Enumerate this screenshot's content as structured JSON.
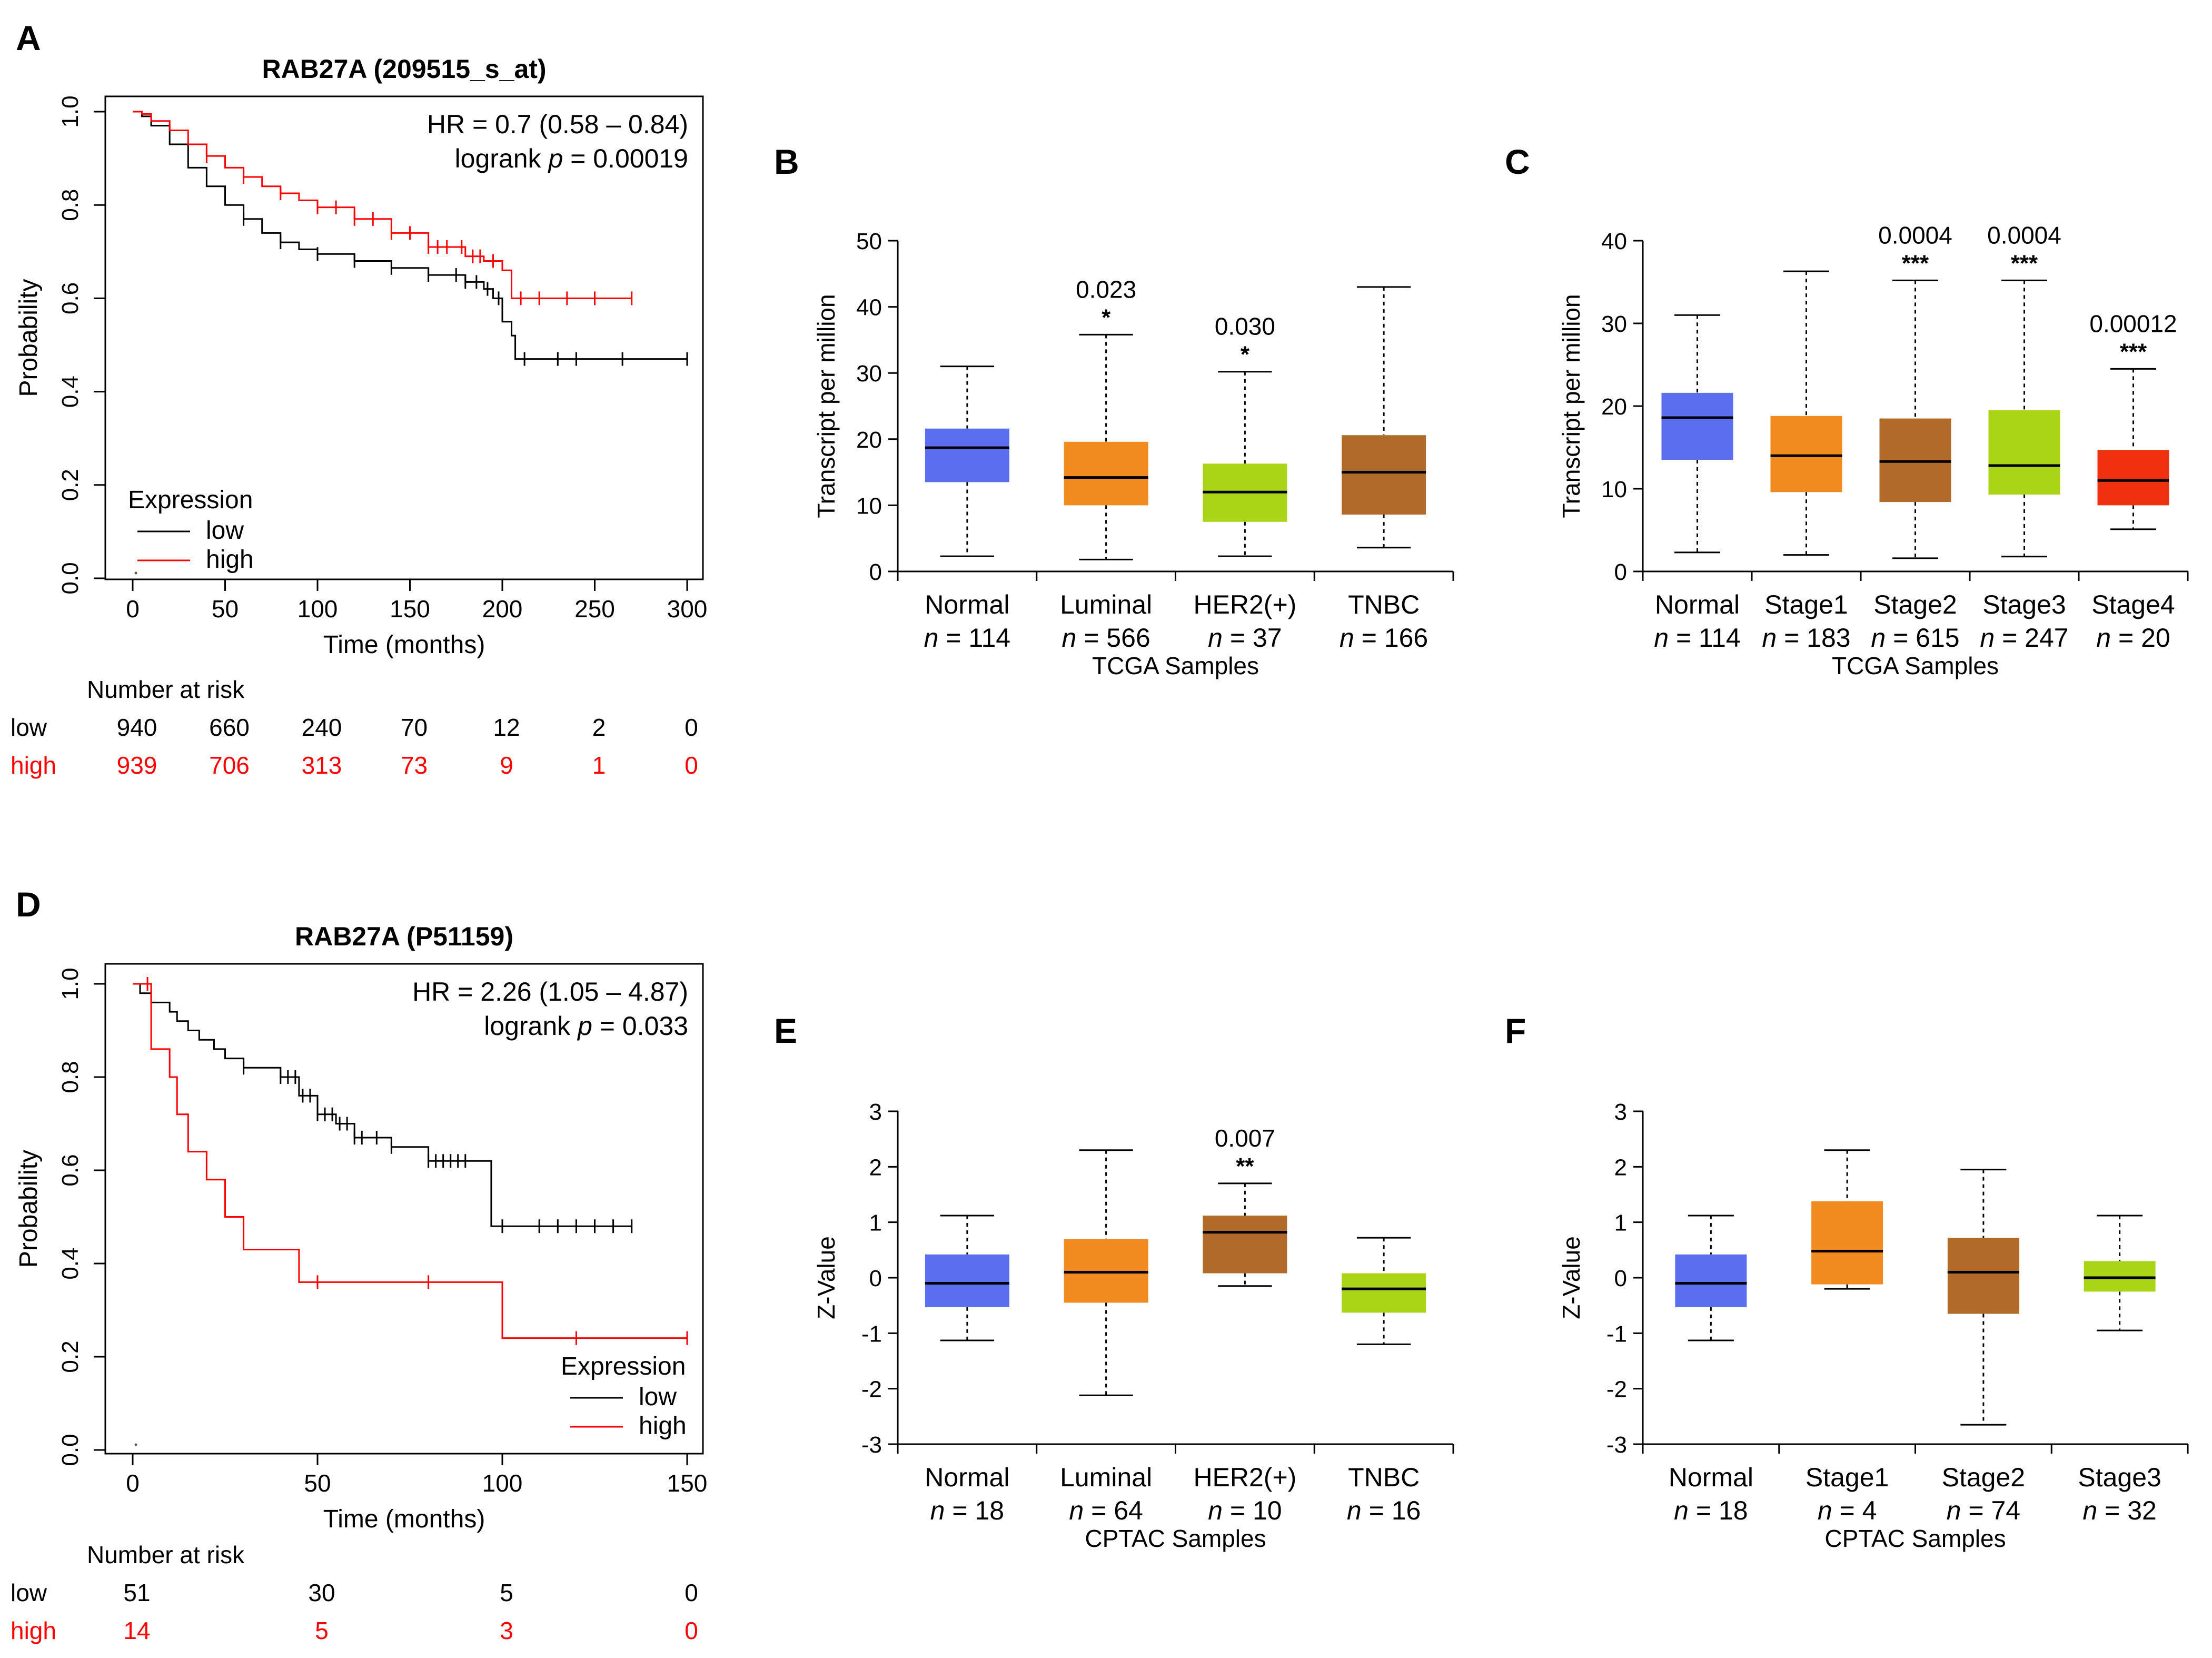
{
  "colors": {
    "km_low": "#000000",
    "km_high": "#ff0000",
    "risk_high": "#ff0000",
    "blue": "#5b6ef0",
    "orange": "#f28b1f",
    "lime": "#aad516",
    "brown": "#b06a2a",
    "red": "#f0300e"
  },
  "chart_data": [
    {
      "panel": "A",
      "type": "line",
      "subtype": "kaplan-meier",
      "title": "RAB27A (209515_s_at)",
      "xlabel": "Time (months)",
      "ylabel": "Probability",
      "xlim": [
        0,
        300
      ],
      "ylim": [
        0,
        1
      ],
      "xticks": [
        "0",
        "50",
        "100",
        "150",
        "200",
        "250",
        "300"
      ],
      "yticks": [
        "0.0",
        "0.2",
        "0.4",
        "0.6",
        "0.8",
        "1.0"
      ],
      "stats": {
        "hr": "HR = 0.7 (0.58 – 0.84)",
        "logrank_prefix": "logrank ",
        "p_symbol": "p",
        "p_value": " = 0.00019"
      },
      "legend": {
        "title": "Expression",
        "position": "bottom-left",
        "entries": [
          "low",
          "high"
        ]
      },
      "series": [
        {
          "name": "low",
          "color": "#000000",
          "x": [
            0,
            5,
            10,
            20,
            30,
            40,
            50,
            60,
            70,
            80,
            90,
            100,
            120,
            140,
            160,
            180,
            190,
            195,
            200,
            205,
            207,
            300
          ],
          "y": [
            1.0,
            0.99,
            0.97,
            0.93,
            0.88,
            0.84,
            0.8,
            0.77,
            0.74,
            0.72,
            0.705,
            0.695,
            0.68,
            0.665,
            0.65,
            0.635,
            0.62,
            0.6,
            0.55,
            0.52,
            0.47,
            0.47
          ],
          "censor_x": [
            60,
            80,
            100,
            120,
            140,
            160,
            175,
            180,
            186,
            192,
            198,
            212,
            230,
            240,
            265,
            300
          ]
        },
        {
          "name": "high",
          "color": "#ff0000",
          "x": [
            0,
            5,
            10,
            20,
            30,
            40,
            50,
            60,
            70,
            80,
            90,
            100,
            120,
            140,
            160,
            180,
            190,
            200,
            205,
            270
          ],
          "y": [
            1.0,
            0.995,
            0.98,
            0.96,
            0.93,
            0.905,
            0.88,
            0.86,
            0.84,
            0.825,
            0.81,
            0.795,
            0.77,
            0.74,
            0.71,
            0.69,
            0.68,
            0.66,
            0.6,
            0.6
          ],
          "censor_x": [
            40,
            60,
            80,
            100,
            110,
            120,
            130,
            140,
            150,
            160,
            165,
            170,
            178,
            184,
            188,
            195,
            210,
            220,
            235,
            250,
            270
          ]
        }
      ],
      "risk_table": {
        "header": "Number at risk",
        "times": [
          0,
          50,
          100,
          150,
          200,
          250,
          300
        ],
        "rows": [
          {
            "label": "low",
            "values": [
              "940",
              "660",
              "240",
              "70",
              "12",
              "2",
              "0"
            ]
          },
          {
            "label": "high",
            "values": [
              "939",
              "706",
              "313",
              "73",
              "9",
              "1",
              "0"
            ]
          }
        ]
      }
    },
    {
      "panel": "B",
      "type": "box",
      "ylabel": "Transcript per million",
      "xlabel": "TCGA Samples",
      "ylim": [
        0,
        50
      ],
      "yticks": [
        0,
        10,
        20,
        30,
        40,
        50
      ],
      "groups": [
        {
          "name": "Normal",
          "n": "114",
          "color": "#5b6ef0",
          "min": 2.3,
          "q1": 13.5,
          "median": 18.7,
          "q3": 21.6,
          "max": 31,
          "p": "",
          "stars": ""
        },
        {
          "name": "Luminal",
          "n": "566",
          "color": "#f28b1f",
          "min": 1.8,
          "q1": 10,
          "median": 14.2,
          "q3": 19.6,
          "max": 35.8,
          "p": "0.023",
          "stars": "*"
        },
        {
          "name": "HER2(+)",
          "n": "37",
          "color": "#aad516",
          "min": 2.3,
          "q1": 7.5,
          "median": 12,
          "q3": 16.3,
          "max": 30.2,
          "p": "0.030",
          "stars": "*"
        },
        {
          "name": "TNBC",
          "n": "166",
          "color": "#b06a2a",
          "min": 3.6,
          "q1": 8.6,
          "median": 15,
          "q3": 20.6,
          "max": 43,
          "p": "",
          "stars": ""
        }
      ]
    },
    {
      "panel": "C",
      "type": "box",
      "ylabel": "Transcript per million",
      "xlabel": "TCGA Samples",
      "ylim": [
        0,
        40
      ],
      "yticks": [
        0,
        10,
        20,
        30,
        40
      ],
      "groups": [
        {
          "name": "Normal",
          "n": "114",
          "color": "#5b6ef0",
          "min": 2.3,
          "q1": 13.5,
          "median": 18.6,
          "q3": 21.6,
          "max": 31,
          "p": "",
          "stars": ""
        },
        {
          "name": "Stage1",
          "n": "183",
          "color": "#f28b1f",
          "min": 2,
          "q1": 9.6,
          "median": 14,
          "q3": 18.8,
          "max": 36.3,
          "p": "",
          "stars": ""
        },
        {
          "name": "Stage2",
          "n": "615",
          "color": "#b06a2a",
          "min": 1.6,
          "q1": 8.4,
          "median": 13.3,
          "q3": 18.5,
          "max": 35.2,
          "p": "0.0004",
          "stars": "***"
        },
        {
          "name": "Stage3",
          "n": "247",
          "color": "#aad516",
          "min": 1.8,
          "q1": 9.3,
          "median": 12.8,
          "q3": 19.5,
          "max": 35.2,
          "p": "0.0004",
          "stars": "***"
        },
        {
          "name": "Stage4",
          "n": "20",
          "color": "#f0300e",
          "min": 5.1,
          "q1": 8,
          "median": 11,
          "q3": 14.7,
          "max": 24.5,
          "p": "0.00012",
          "stars": "***"
        }
      ]
    },
    {
      "panel": "D",
      "type": "line",
      "subtype": "kaplan-meier",
      "title": "RAB27A (P51159)",
      "xlabel": "Time (months)",
      "ylabel": "Probability",
      "xlim": [
        0,
        150
      ],
      "ylim": [
        0,
        1
      ],
      "xticks": [
        "0",
        "50",
        "100",
        "150"
      ],
      "yticks": [
        "0.0",
        "0.2",
        "0.4",
        "0.6",
        "0.8",
        "1.0"
      ],
      "stats": {
        "hr": "HR = 2.26 (1.05 – 4.87)",
        "logrank_prefix": "logrank ",
        "p_symbol": "p",
        "p_value": " = 0.033"
      },
      "legend": {
        "title": "Expression",
        "position": "bottom-right",
        "entries": [
          "low",
          "high"
        ]
      },
      "series": [
        {
          "name": "low",
          "color": "#000000",
          "x": [
            0,
            2,
            5,
            10,
            12,
            15,
            18,
            22,
            25,
            30,
            40,
            45,
            50,
            55,
            60,
            70,
            80,
            95,
            97,
            135
          ],
          "y": [
            1.0,
            0.98,
            0.96,
            0.94,
            0.92,
            0.9,
            0.88,
            0.86,
            0.84,
            0.82,
            0.8,
            0.76,
            0.72,
            0.7,
            0.67,
            0.65,
            0.62,
            0.62,
            0.48,
            0.48
          ],
          "censor_x": [
            30,
            40,
            42,
            44,
            46,
            48,
            50,
            52,
            54,
            56,
            58,
            60,
            62,
            66,
            70,
            80,
            82,
            84,
            86,
            88,
            90,
            100,
            110,
            115,
            120,
            125,
            130,
            135
          ]
        },
        {
          "name": "high",
          "color": "#ff0000",
          "x": [
            0,
            5,
            10,
            12,
            15,
            20,
            25,
            30,
            35,
            45,
            50,
            100,
            150
          ],
          "y": [
            1.0,
            0.86,
            0.8,
            0.72,
            0.64,
            0.58,
            0.5,
            0.43,
            0.43,
            0.36,
            0.36,
            0.24,
            0.24
          ],
          "censor_x": [
            4,
            50,
            80,
            120,
            150
          ]
        }
      ],
      "risk_table": {
        "header": "Number at risk",
        "times": [
          0,
          50,
          100,
          150
        ],
        "rows": [
          {
            "label": "low",
            "values": [
              "51",
              "30",
              "5",
              "0"
            ]
          },
          {
            "label": "high",
            "values": [
              "14",
              "5",
              "3",
              "0"
            ]
          }
        ]
      }
    },
    {
      "panel": "E",
      "type": "box",
      "ylabel": "Z-Value",
      "xlabel": "CPTAC Samples",
      "ylim": [
        -3,
        3
      ],
      "yticks": [
        -3,
        -2,
        -1,
        0,
        1,
        2,
        3
      ],
      "groups": [
        {
          "name": "Normal",
          "n": "18",
          "color": "#5b6ef0",
          "min": -1.13,
          "q1": -0.53,
          "median": -0.1,
          "q3": 0.42,
          "max": 1.12,
          "p": "",
          "stars": ""
        },
        {
          "name": "Luminal",
          "n": "64",
          "color": "#f28b1f",
          "min": -2.12,
          "q1": -0.45,
          "median": 0.1,
          "q3": 0.7,
          "max": 2.3,
          "p": "",
          "stars": ""
        },
        {
          "name": "HER2(+)",
          "n": "10",
          "color": "#b06a2a",
          "min": -0.15,
          "q1": 0.08,
          "median": 0.82,
          "q3": 1.12,
          "max": 1.7,
          "p": "0.007",
          "stars": "**"
        },
        {
          "name": "TNBC",
          "n": "16",
          "color": "#aad516",
          "min": -1.2,
          "q1": -0.63,
          "median": -0.2,
          "q3": 0.08,
          "max": 0.72,
          "p": "",
          "stars": ""
        }
      ]
    },
    {
      "panel": "F",
      "type": "box",
      "ylabel": "Z-Value",
      "xlabel": "CPTAC Samples",
      "ylim": [
        -3,
        3
      ],
      "yticks": [
        -3,
        -2,
        -1,
        0,
        1,
        2,
        3
      ],
      "groups": [
        {
          "name": "Normal",
          "n": "18",
          "color": "#5b6ef0",
          "min": -1.13,
          "q1": -0.53,
          "median": -0.1,
          "q3": 0.42,
          "max": 1.12,
          "p": "",
          "stars": ""
        },
        {
          "name": "Stage1",
          "n": "4",
          "color": "#f28b1f",
          "min": -0.2,
          "q1": -0.12,
          "median": 0.48,
          "q3": 1.38,
          "max": 2.3,
          "p": "",
          "stars": ""
        },
        {
          "name": "Stage2",
          "n": "74",
          "color": "#b06a2a",
          "min": -2.65,
          "q1": -0.65,
          "median": 0.1,
          "q3": 0.72,
          "max": 1.95,
          "p": "",
          "stars": ""
        },
        {
          "name": "Stage3",
          "n": "32",
          "color": "#aad516",
          "min": -0.95,
          "q1": -0.25,
          "median": 0.0,
          "q3": 0.3,
          "max": 1.12,
          "p": "",
          "stars": ""
        }
      ]
    }
  ]
}
